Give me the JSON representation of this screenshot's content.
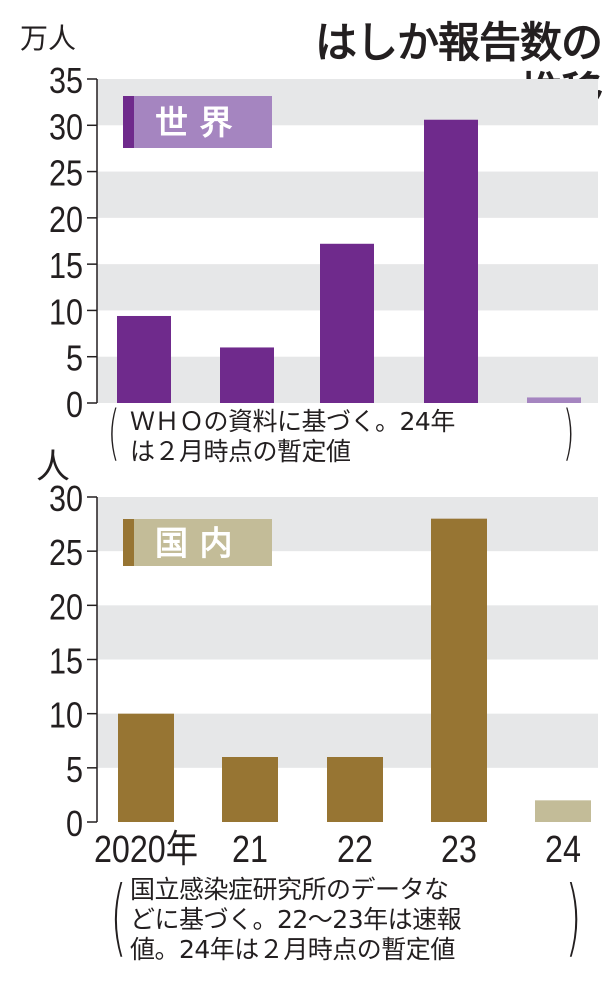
{
  "title_lines": [
    "はしか報告数の",
    "推移"
  ],
  "chart_data": [
    {
      "type": "bar",
      "legend_label": "世 界",
      "ylabel": "万人",
      "ylim": [
        0,
        35
      ],
      "yticks": [
        0,
        5,
        10,
        15,
        20,
        25,
        30,
        35
      ],
      "categories": [
        "2020年",
        "21",
        "22",
        "23",
        "24"
      ],
      "values": [
        9.4,
        6.0,
        17.2,
        30.6,
        0.6
      ],
      "provisional": [
        false,
        false,
        false,
        false,
        true
      ],
      "colors": {
        "bar": "#6f2a8c",
        "provisional": "#a585c0",
        "legend_bg": "#a585c0",
        "legend_stripe": "#6f2a8c",
        "band": "#e6e7e8"
      },
      "note": [
        "ＷＨＯの資料に基づく。24年",
        "は２月時点の暫定値"
      ]
    },
    {
      "type": "bar",
      "legend_label": "国 内",
      "ylabel": "人",
      "ylim": [
        0,
        30
      ],
      "yticks": [
        0,
        5,
        10,
        15,
        20,
        25,
        30
      ],
      "categories": [
        "2020年",
        "21",
        "22",
        "23",
        "24"
      ],
      "values": [
        10,
        6,
        6,
        28,
        2
      ],
      "provisional": [
        false,
        false,
        false,
        false,
        true
      ],
      "colors": {
        "bar": "#977533",
        "provisional": "#c3bc98",
        "legend_bg": "#c3bc98",
        "legend_stripe": "#977533",
        "band": "#e6e7e8"
      },
      "note": [
        "国立感染症研究所のデータな",
        "どに基づく。22～23年は速報",
        "値。24年は２月時点の暫定値"
      ]
    }
  ]
}
